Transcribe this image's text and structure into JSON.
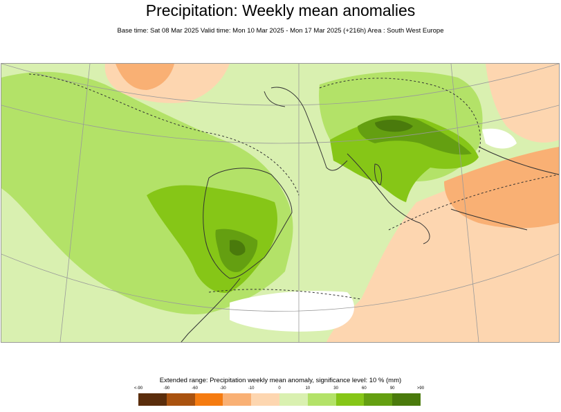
{
  "title": "Precipitation: Weekly mean anomalies",
  "subtitle": "Base time: Sat 08 Mar 2025 Valid time: Mon 10 Mar 2025 - Mon 17 Mar 2025 (+216h) Area : South West Europe",
  "legend": {
    "caption": "Extended range: Precipitation weekly mean anomaly, significance level: 10 % (mm)",
    "ticks": [
      "<-90",
      "-90",
      "-60",
      "-30",
      "-10",
      "0",
      "10",
      "30",
      "60",
      "90",
      ">90"
    ],
    "colors": [
      "#5a2d0c",
      "#a9520f",
      "#f57b10",
      "#f9b074",
      "#fdd6b0",
      "#ffffff",
      "#d9f0b0",
      "#b3e268",
      "#86c617",
      "#649f11",
      "#4a7a0c"
    ]
  },
  "map": {
    "region": "South West Europe",
    "colors": {
      "sea_light_green": "#d9f0b0",
      "mid_green": "#b3e268",
      "green": "#86c617",
      "dark_green": "#649f11",
      "light_orange": "#fdd6b0",
      "orange": "#f9b074",
      "coast": "#333333",
      "grid": "#999999"
    }
  }
}
